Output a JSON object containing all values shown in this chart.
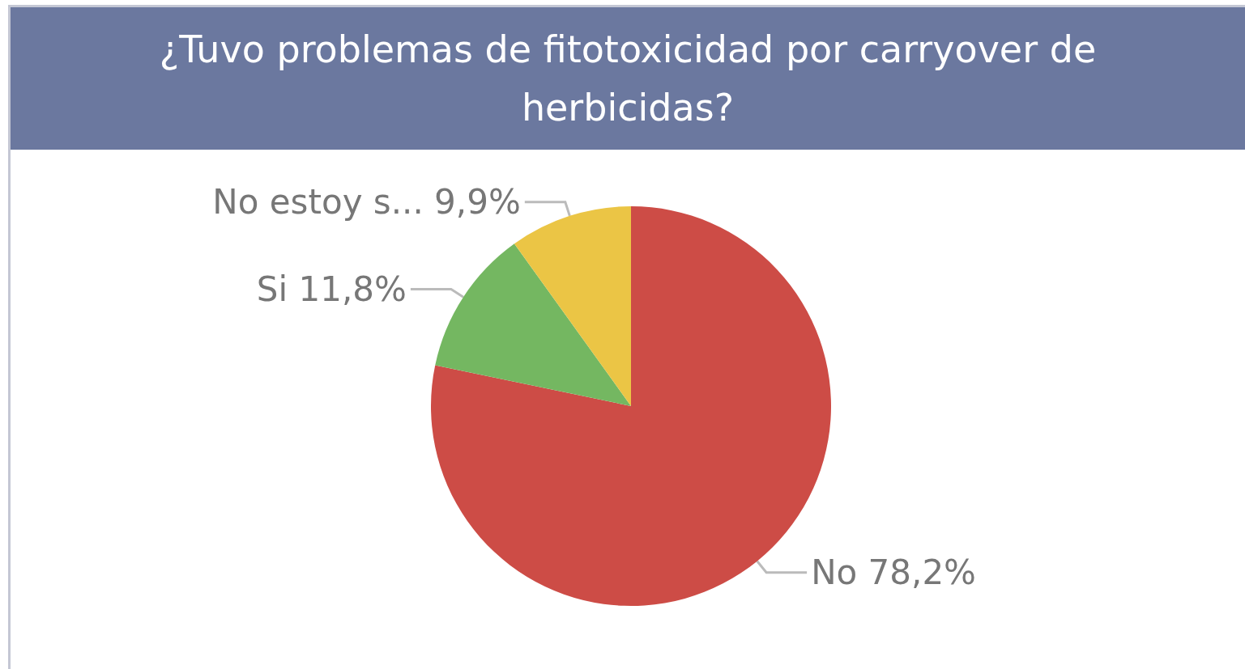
{
  "chart_data": {
    "type": "pie",
    "title": "¿Tuvo problemas de fitotoxicidad por carryover de herbicidas?",
    "categories": [
      "No",
      "Si",
      "No estoy s..."
    ],
    "values": [
      78.2,
      11.8,
      9.9
    ],
    "colors": [
      "#cd4c46",
      "#74b761",
      "#ebc545"
    ],
    "value_labels": [
      "78,2%",
      "11,8%",
      "9,9%"
    ],
    "legend": false
  }
}
